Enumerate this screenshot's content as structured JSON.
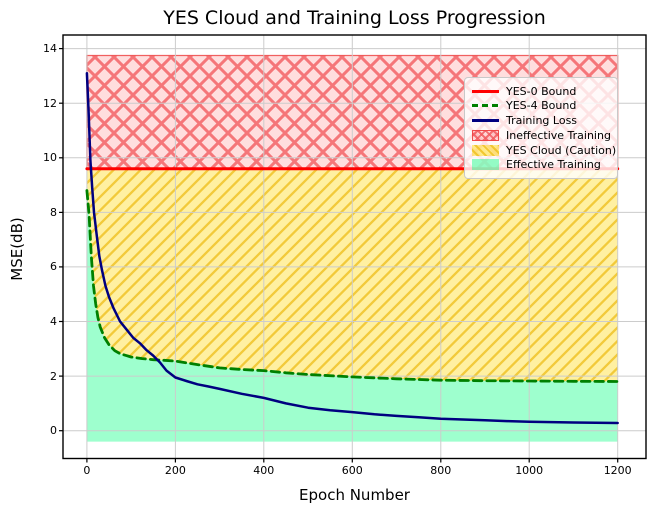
{
  "chart_data": {
    "type": "line",
    "title": "YES Cloud and Training Loss Progression",
    "xlabel": "Epoch Number",
    "ylabel": "MSE(dB)",
    "xlim": [
      -54,
      1264
    ],
    "ylim": [
      -1.02,
      14.5
    ],
    "x_ticks": [
      0,
      200,
      400,
      600,
      800,
      1000,
      1200
    ],
    "y_ticks": [
      0,
      2,
      4,
      6,
      8,
      10,
      12,
      14
    ],
    "grid": true,
    "grid_color": "#cccccc",
    "spine_color": "#000000",
    "region_x_range": [
      0,
      1200
    ],
    "series": [
      {
        "name": "YES-0 Bound",
        "color": "#ff0000",
        "style": "solid",
        "width": 3,
        "x": [
          0,
          1200
        ],
        "y": [
          9.6,
          9.6
        ]
      },
      {
        "name": "YES-4 Bound",
        "color": "#008000",
        "style": "dashed",
        "width": 2.8,
        "x": [
          0,
          5,
          10,
          15,
          20,
          25,
          30,
          40,
          50,
          63,
          75,
          100,
          125,
          150,
          175,
          200,
          250,
          300,
          350,
          400,
          450,
          500,
          600,
          700,
          800,
          900,
          1000,
          1100,
          1200
        ],
        "y": [
          8.8,
          7.9,
          6.4,
          5.3,
          4.65,
          4.15,
          3.8,
          3.4,
          3.15,
          2.93,
          2.82,
          2.7,
          2.64,
          2.6,
          2.58,
          2.55,
          2.42,
          2.3,
          2.24,
          2.2,
          2.12,
          2.06,
          1.97,
          1.9,
          1.85,
          1.83,
          1.82,
          1.81,
          1.8
        ]
      },
      {
        "name": "Training Loss",
        "color": "#000080",
        "style": "solid",
        "width": 2.5,
        "x": [
          0,
          4,
          8,
          12,
          16,
          22,
          28,
          34,
          42,
          50,
          60,
          75,
          90,
          105,
          120,
          135,
          150,
          165,
          180,
          200,
          225,
          250,
          275,
          300,
          350,
          400,
          450,
          500,
          550,
          600,
          650,
          700,
          750,
          800,
          850,
          900,
          950,
          1000,
          1100,
          1200
        ],
        "y": [
          13.1,
          11.6,
          9.9,
          8.9,
          8.0,
          7.2,
          6.4,
          5.9,
          5.3,
          4.9,
          4.5,
          4.0,
          3.7,
          3.4,
          3.2,
          2.95,
          2.75,
          2.5,
          2.2,
          1.95,
          1.82,
          1.7,
          1.62,
          1.53,
          1.35,
          1.2,
          1.0,
          0.84,
          0.75,
          0.68,
          0.6,
          0.54,
          0.49,
          0.44,
          0.41,
          0.38,
          0.35,
          0.33,
          0.3,
          0.28
        ]
      }
    ],
    "regions": [
      {
        "name": "Ineffective Training",
        "bottom": 9.6,
        "top": 13.75,
        "fill": "rgba(255,0,0,0.13)",
        "hatch": "x",
        "hatch_color": "rgba(242,92,96,0.8)",
        "edge": "rgba(240,80,80,0.9)"
      },
      {
        "name": "YES Cloud (Caution)",
        "bottom": "yes4_curve",
        "top": 9.6,
        "fill": "rgba(255,215,0,0.37)",
        "hatch": "/",
        "hatch_color": "rgba(240,195,40,0.85)",
        "edge": "none"
      },
      {
        "name": "Effective Training",
        "bottom": -0.4,
        "top": "yes4_curve",
        "fill": "rgba(0,255,127,0.38)",
        "hatch": "none",
        "hatch_color": "none",
        "edge": "none"
      }
    ],
    "legend": {
      "position": "upper right",
      "entries": [
        {
          "label": "YES-0 Bound",
          "swatch": "line-yes0"
        },
        {
          "label": "YES-4 Bound",
          "swatch": "line-yes4"
        },
        {
          "label": "Training Loss",
          "swatch": "line-training"
        },
        {
          "label": "Ineffective Training",
          "swatch": "patch-ineffective"
        },
        {
          "label": "YES Cloud (Caution)",
          "swatch": "patch-cloud"
        },
        {
          "label": "Effective Training",
          "swatch": "patch-effective"
        }
      ]
    }
  }
}
